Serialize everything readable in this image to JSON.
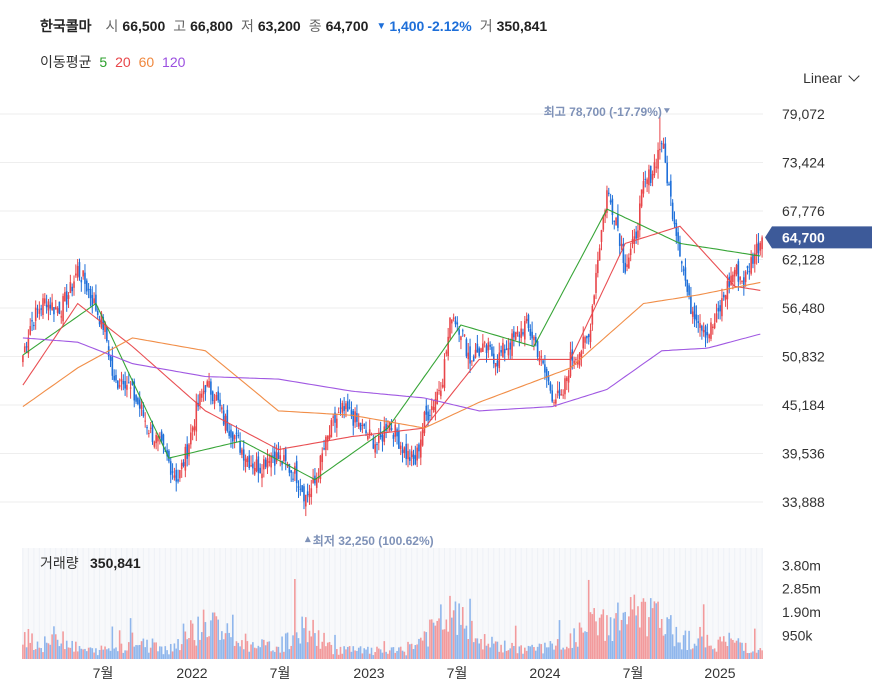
{
  "header": {
    "name": "한국콜마",
    "open_label": "시",
    "open": "66,500",
    "high_label": "고",
    "high": "66,800",
    "low_label": "저",
    "low": "63,200",
    "close_label": "종",
    "close": "64,700",
    "change_arrow": "▼",
    "change": "1,400",
    "change_pct": "-2.12%",
    "volume_label": "거",
    "volume": "350,841"
  },
  "ma_legend": {
    "label": "이동평균",
    "periods": [
      "5",
      "20",
      "60",
      "120"
    ],
    "colors": [
      "#2ca02c",
      "#e8464a",
      "#f0883e",
      "#9b4fe0"
    ]
  },
  "scale_selector": {
    "value": "Linear",
    "icon": "chevron-down-icon"
  },
  "colors": {
    "up": "#e8464a",
    "down": "#1e6fd9",
    "grid": "#eeeeee",
    "badge": "#3d5a99"
  },
  "chart_data": {
    "type": "candlestick",
    "price_ticks": [
      "79,072",
      "73,424",
      "67,776",
      "62,128",
      "56,480",
      "50,832",
      "45,184",
      "39,536",
      "33,888"
    ],
    "price_range": [
      33888,
      79072
    ],
    "current_price": "64,700",
    "current_value": 64700,
    "high_annotation": "최고 78,700 (-17.79%)",
    "high_value": 78700,
    "low_annotation": "최저 32,250 (100.62%)",
    "low_value": 32250,
    "x_ticks": [
      "7월",
      "2022",
      "7월",
      "2023",
      "7월",
      "2024",
      "7월",
      "2025"
    ],
    "volume_label": "거래량",
    "volume_value": "350,841",
    "volume_ticks": [
      "3.80m",
      "2.85m",
      "1.90m",
      "950k"
    ],
    "volume_tick_values": [
      3800000,
      2850000,
      1900000,
      950000
    ],
    "volume_range": [
      0,
      4500000
    ],
    "close_series": [
      [
        0,
        51000
      ],
      [
        4,
        54500
      ],
      [
        9,
        56500
      ],
      [
        13,
        57500
      ],
      [
        17,
        56500
      ],
      [
        21,
        56500
      ],
      [
        26,
        58500
      ],
      [
        30,
        61000
      ],
      [
        35,
        59000
      ],
      [
        40,
        56500
      ],
      [
        45,
        54000
      ],
      [
        50,
        47500
      ],
      [
        55,
        48500
      ],
      [
        60,
        46500
      ],
      [
        65,
        44500
      ],
      [
        70,
        42000
      ],
      [
        75,
        40500
      ],
      [
        80,
        38500
      ],
      [
        85,
        36500
      ],
      [
        90,
        40000
      ],
      [
        95,
        44500
      ],
      [
        100,
        47500
      ],
      [
        105,
        46500
      ],
      [
        110,
        43500
      ],
      [
        115,
        42000
      ],
      [
        120,
        40000
      ],
      [
        125,
        38500
      ],
      [
        130,
        38000
      ],
      [
        135,
        39500
      ],
      [
        140,
        39000
      ],
      [
        145,
        38000
      ],
      [
        150,
        37000
      ],
      [
        155,
        34500
      ],
      [
        160,
        36000
      ],
      [
        165,
        40000
      ],
      [
        170,
        43000
      ],
      [
        175,
        44500
      ],
      [
        180,
        44000
      ],
      [
        185,
        42500
      ],
      [
        190,
        41500
      ],
      [
        195,
        40500
      ],
      [
        200,
        43500
      ],
      [
        205,
        41500
      ],
      [
        210,
        39500
      ],
      [
        215,
        38500
      ],
      [
        220,
        43500
      ],
      [
        225,
        45500
      ],
      [
        230,
        48500
      ],
      [
        235,
        56000
      ],
      [
        240,
        54000
      ],
      [
        245,
        50500
      ],
      [
        250,
        51500
      ],
      [
        255,
        51500
      ],
      [
        260,
        50500
      ],
      [
        265,
        52000
      ],
      [
        270,
        53000
      ],
      [
        275,
        54500
      ],
      [
        280,
        53000
      ],
      [
        285,
        49500
      ],
      [
        290,
        46500
      ],
      [
        295,
        45500
      ],
      [
        300,
        50500
      ],
      [
        305,
        51500
      ],
      [
        310,
        53000
      ],
      [
        315,
        62500
      ],
      [
        320,
        70000
      ],
      [
        325,
        67000
      ],
      [
        330,
        61500
      ],
      [
        335,
        64000
      ],
      [
        340,
        70500
      ],
      [
        345,
        72500
      ],
      [
        350,
        76000
      ],
      [
        355,
        69000
      ],
      [
        360,
        63500
      ],
      [
        365,
        57000
      ],
      [
        370,
        55500
      ],
      [
        375,
        53500
      ],
      [
        380,
        55000
      ],
      [
        385,
        58500
      ],
      [
        390,
        61000
      ],
      [
        395,
        59500
      ],
      [
        400,
        62500
      ],
      [
        405,
        64700
      ]
    ],
    "volume_series": [
      [
        0,
        1500000
      ],
      [
        10,
        600000
      ],
      [
        20,
        1300000
      ],
      [
        30,
        500000
      ],
      [
        40,
        400000
      ],
      [
        60,
        800000
      ],
      [
        80,
        500000
      ],
      [
        100,
        1900000
      ],
      [
        120,
        700000
      ],
      [
        140,
        600000
      ],
      [
        155,
        1600000
      ],
      [
        170,
        500000
      ],
      [
        190,
        400000
      ],
      [
        210,
        400000
      ],
      [
        235,
        2250000
      ],
      [
        250,
        900000
      ],
      [
        270,
        500000
      ],
      [
        290,
        600000
      ],
      [
        300,
        900000
      ],
      [
        315,
        1900000
      ],
      [
        320,
        1700000
      ],
      [
        330,
        2250000
      ],
      [
        345,
        2100000
      ],
      [
        360,
        1100000
      ],
      [
        375,
        800000
      ],
      [
        390,
        900000
      ],
      [
        405,
        350841
      ]
    ],
    "ma5": [
      [
        0,
        51000
      ],
      [
        40,
        57000
      ],
      [
        80,
        39000
      ],
      [
        120,
        41000
      ],
      [
        160,
        36500
      ],
      [
        200,
        42500
      ],
      [
        240,
        54500
      ],
      [
        280,
        52000
      ],
      [
        320,
        68000
      ],
      [
        360,
        64000
      ],
      [
        405,
        62500
      ]
    ],
    "ma20": [
      [
        0,
        47500
      ],
      [
        30,
        57000
      ],
      [
        60,
        52000
      ],
      [
        100,
        44500
      ],
      [
        140,
        40000
      ],
      [
        180,
        41500
      ],
      [
        220,
        42500
      ],
      [
        250,
        50500
      ],
      [
        300,
        50500
      ],
      [
        330,
        64000
      ],
      [
        360,
        66000
      ],
      [
        390,
        59000
      ],
      [
        405,
        58500
      ]
    ],
    "ma60": [
      [
        0,
        45000
      ],
      [
        30,
        49500
      ],
      [
        60,
        53000
      ],
      [
        100,
        51500
      ],
      [
        140,
        44500
      ],
      [
        180,
        44000
      ],
      [
        220,
        42500
      ],
      [
        250,
        45500
      ],
      [
        300,
        49500
      ],
      [
        340,
        57000
      ],
      [
        370,
        58000
      ],
      [
        405,
        59500
      ]
    ],
    "ma120": [
      [
        0,
        53000
      ],
      [
        30,
        52500
      ],
      [
        60,
        50000
      ],
      [
        100,
        48500
      ],
      [
        140,
        48200
      ],
      [
        180,
        46800
      ],
      [
        220,
        46000
      ],
      [
        250,
        44500
      ],
      [
        290,
        45000
      ],
      [
        320,
        47000
      ],
      [
        350,
        51500
      ],
      [
        375,
        51800
      ],
      [
        405,
        53500
      ]
    ]
  }
}
